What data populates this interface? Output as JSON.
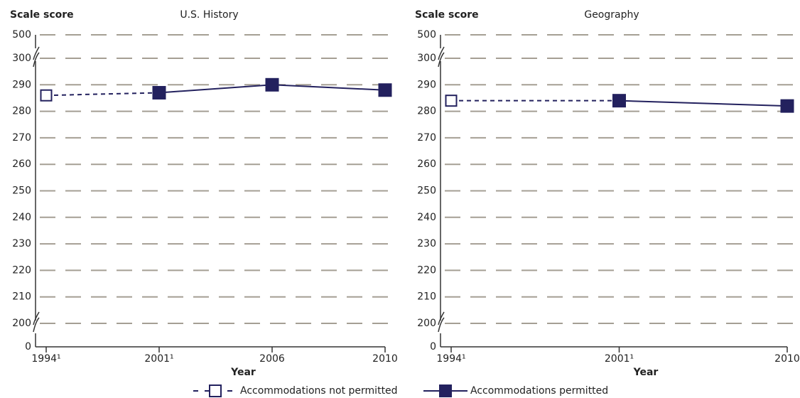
{
  "chart_data": [
    {
      "type": "line",
      "title": "U.S. History",
      "y_label": "Scale score",
      "x_label": "Year",
      "categories": [
        "1994¹",
        "2001¹",
        "2006",
        "2010"
      ],
      "series": [
        {
          "name": "Accommodations not permitted",
          "color": "#23215e",
          "marker": "open-square",
          "line": "dashed",
          "values": [
            286,
            null,
            null,
            null
          ]
        },
        {
          "name": "Accommodations permitted",
          "color": "#23215e",
          "marker": "filled-square",
          "line": "solid",
          "values": [
            null,
            287,
            290,
            288
          ]
        }
      ],
      "ylim": [
        0,
        500
      ],
      "yticks": [
        0,
        200,
        210,
        220,
        230,
        240,
        250,
        260,
        270,
        280,
        290,
        300,
        500
      ],
      "y_breaks": [
        [
          0,
          200
        ],
        [
          300,
          500
        ]
      ],
      "grid": true
    },
    {
      "type": "line",
      "title": "Geography",
      "y_label": "Scale score",
      "x_label": "Year",
      "categories": [
        "1994¹",
        "2001¹",
        "2010"
      ],
      "series": [
        {
          "name": "Accommodations not permitted",
          "color": "#23215e",
          "marker": "open-square",
          "line": "dashed",
          "values": [
            284,
            null,
            null
          ]
        },
        {
          "name": "Accommodations permitted",
          "color": "#23215e",
          "marker": "filled-square",
          "line": "solid",
          "values": [
            null,
            284,
            282
          ]
        }
      ],
      "ylim": [
        0,
        500
      ],
      "yticks": [
        0,
        200,
        210,
        220,
        230,
        240,
        250,
        260,
        270,
        280,
        290,
        300,
        500
      ],
      "y_breaks": [
        [
          0,
          200
        ],
        [
          300,
          500
        ]
      ],
      "grid": true
    }
  ]
}
